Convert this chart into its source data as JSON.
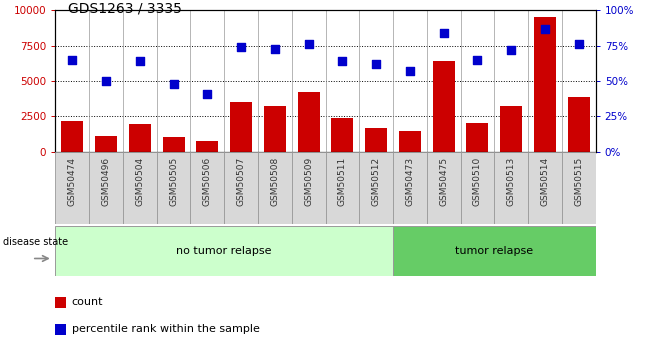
{
  "title": "GDS1263 / 3335",
  "samples": [
    "GSM50474",
    "GSM50496",
    "GSM50504",
    "GSM50505",
    "GSM50506",
    "GSM50507",
    "GSM50508",
    "GSM50509",
    "GSM50511",
    "GSM50512",
    "GSM50473",
    "GSM50475",
    "GSM50510",
    "GSM50513",
    "GSM50514",
    "GSM50515"
  ],
  "counts": [
    2200,
    1100,
    1950,
    1050,
    750,
    3550,
    3250,
    4200,
    2400,
    1700,
    1500,
    6400,
    2050,
    3250,
    9500,
    3900
  ],
  "percentiles": [
    65,
    50,
    64,
    48,
    41,
    74,
    73,
    76,
    64,
    62,
    57,
    84,
    65,
    72,
    87,
    76
  ],
  "no_tumor_count": 10,
  "tumor_count": 6,
  "bar_color": "#cc0000",
  "dot_color": "#0000cc",
  "no_tumor_color": "#ccffcc",
  "tumor_color": "#66cc66",
  "ylim_left": [
    0,
    10000
  ],
  "ylim_right": [
    0,
    100
  ],
  "yticks_left": [
    0,
    2500,
    5000,
    7500,
    10000
  ],
  "yticks_right": [
    0,
    25,
    50,
    75,
    100
  ],
  "ytick_labels_left": [
    "0",
    "2500",
    "5000",
    "7500",
    "10000"
  ],
  "ytick_labels_right": [
    "0%",
    "25%",
    "50%",
    "75%",
    "100%"
  ],
  "legend_count_label": "count",
  "legend_percentile_label": "percentile rank within the sample",
  "disease_state_label": "disease state",
  "no_tumor_label": "no tumor relapse",
  "tumor_label": "tumor relapse",
  "label_bg_color": "#d8d8d8",
  "label_border_color": "#999999"
}
